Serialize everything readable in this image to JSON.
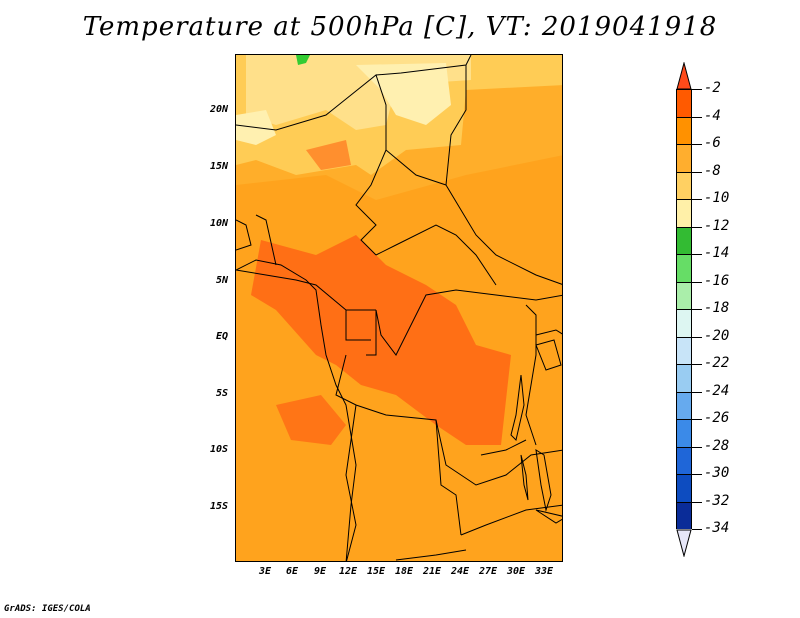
{
  "title": "Temperature at 500hPa [C], VT: 2019041918",
  "footer": "GrADS: IGES/COLA",
  "map": {
    "region": "Central Africa",
    "lat_labels": [
      "20N",
      "15N",
      "10N",
      "5N",
      "EQ",
      "5S",
      "10S",
      "15S"
    ],
    "lon_labels": [
      "3E",
      "6E",
      "9E",
      "12E",
      "15E",
      "18E",
      "21E",
      "24E",
      "27E",
      "30E",
      "33E"
    ],
    "colors": {
      "warm_core": "#ff6614",
      "mid": "#ff9a12",
      "base": "#ffae2a",
      "light": "#ffcc55",
      "lighter": "#ffe08a",
      "lightest": "#fff0b0",
      "green_spot": "#33cc33",
      "border": "#000000"
    }
  },
  "colorbar": {
    "labels": [
      "-2",
      "-4",
      "-6",
      "-8",
      "-10",
      "-12",
      "-14",
      "-16",
      "-18",
      "-20",
      "-22",
      "-24",
      "-26",
      "-28",
      "-30",
      "-32",
      "-34"
    ],
    "top_color": "#ff4a1a",
    "bottom_color": "#e6e6f8",
    "colors": [
      "#ff5a00",
      "#ff9100",
      "#ffae2e",
      "#ffd062",
      "#fff0a8",
      "#33bb33",
      "#66dd66",
      "#aaeeaa",
      "#ddf6f2",
      "#c8e4f8",
      "#99ccf2",
      "#66aaee",
      "#3b8ae8",
      "#1f66d8",
      "#0d4cc0",
      "#0a2c98",
      "#071a6e"
    ]
  }
}
